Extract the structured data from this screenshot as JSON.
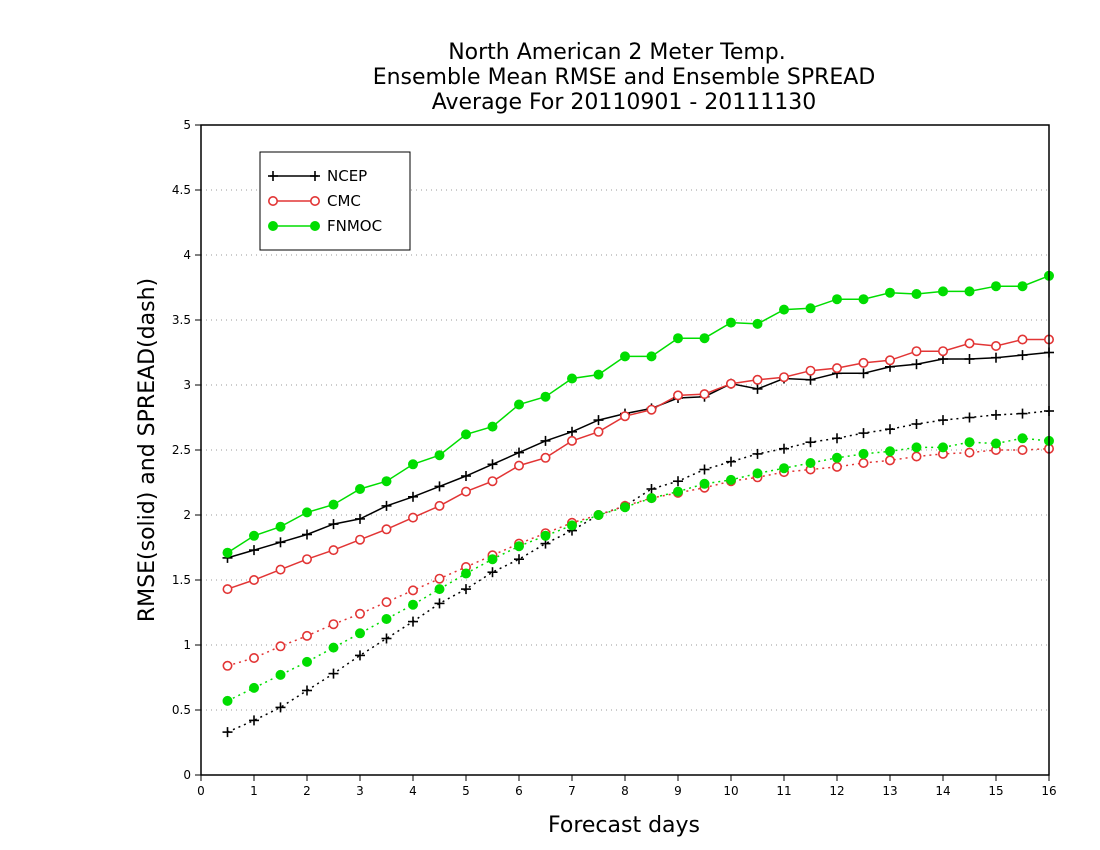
{
  "chart_data": {
    "type": "line",
    "title": [
      "North American 2 Meter Temp.",
      "Ensemble Mean RMSE and Ensemble SPREAD",
      "Average For 20110901 - 20111130"
    ],
    "xlabel": "Forecast days",
    "ylabel": "RMSE(solid) and SPREAD(dash)",
    "xlim": [
      0,
      16
    ],
    "ylim": [
      0,
      5
    ],
    "x_ticks": [
      "0",
      "1",
      "2",
      "3",
      "4",
      "5",
      "6",
      "7",
      "8",
      "9",
      "10",
      "11",
      "12",
      "13",
      "14",
      "15",
      "16"
    ],
    "y_ticks": [
      "0",
      "0.5",
      "1",
      "1.5",
      "2",
      "2.5",
      "3",
      "3.5",
      "4",
      "4.5",
      "5"
    ],
    "grid": "horizontal dotted",
    "legend_position": "top-left",
    "x": [
      0.5,
      1,
      1.5,
      2,
      2.5,
      3,
      3.5,
      4,
      4.5,
      5,
      5.5,
      6,
      6.5,
      7,
      7.5,
      8,
      8.5,
      9,
      9.5,
      10,
      10.5,
      11,
      11.5,
      12,
      12.5,
      13,
      13.5,
      14,
      14.5,
      15,
      15.5,
      16
    ],
    "series": [
      {
        "name": "NCEP",
        "color": "#000000",
        "marker": "plus",
        "rmse": [
          1.67,
          1.73,
          1.79,
          1.85,
          1.93,
          1.97,
          2.07,
          2.14,
          2.22,
          2.3,
          2.39,
          2.48,
          2.57,
          2.64,
          2.73,
          2.78,
          2.82,
          2.9,
          2.91,
          3.01,
          2.97,
          3.05,
          3.04,
          3.09,
          3.09,
          3.14,
          3.16,
          3.2,
          3.2,
          3.21,
          3.23,
          3.25
        ],
        "spread": [
          0.33,
          0.42,
          0.52,
          0.65,
          0.78,
          0.92,
          1.05,
          1.18,
          1.32,
          1.43,
          1.56,
          1.66,
          1.78,
          1.88,
          2.0,
          2.07,
          2.2,
          2.26,
          2.35,
          2.41,
          2.47,
          2.51,
          2.56,
          2.59,
          2.63,
          2.66,
          2.7,
          2.73,
          2.75,
          2.77,
          2.78,
          2.8
        ]
      },
      {
        "name": "CMC",
        "color": "#e23535",
        "marker": "open-circle",
        "rmse": [
          1.43,
          1.5,
          1.58,
          1.66,
          1.73,
          1.81,
          1.89,
          1.98,
          2.07,
          2.18,
          2.26,
          2.38,
          2.44,
          2.57,
          2.64,
          2.76,
          2.81,
          2.92,
          2.93,
          3.01,
          3.04,
          3.06,
          3.11,
          3.13,
          3.17,
          3.19,
          3.26,
          3.26,
          3.32,
          3.3,
          3.35,
          3.35
        ],
        "spread": [
          0.84,
          0.9,
          0.99,
          1.07,
          1.16,
          1.24,
          1.33,
          1.42,
          1.51,
          1.6,
          1.69,
          1.78,
          1.86,
          1.94,
          2.0,
          2.07,
          2.13,
          2.17,
          2.21,
          2.26,
          2.29,
          2.33,
          2.35,
          2.37,
          2.4,
          2.42,
          2.45,
          2.47,
          2.48,
          2.5,
          2.5,
          2.51
        ]
      },
      {
        "name": "FNMOC",
        "color": "#00dd00",
        "marker": "filled-circle",
        "rmse": [
          1.71,
          1.84,
          1.91,
          2.02,
          2.08,
          2.2,
          2.26,
          2.39,
          2.46,
          2.62,
          2.68,
          2.85,
          2.91,
          3.05,
          3.08,
          3.22,
          3.22,
          3.36,
          3.36,
          3.48,
          3.47,
          3.58,
          3.59,
          3.66,
          3.66,
          3.71,
          3.7,
          3.72,
          3.72,
          3.76,
          3.76,
          3.84
        ],
        "spread": [
          0.57,
          0.67,
          0.77,
          0.87,
          0.98,
          1.09,
          1.2,
          1.31,
          1.43,
          1.55,
          1.66,
          1.76,
          1.84,
          1.92,
          2.0,
          2.06,
          2.13,
          2.18,
          2.24,
          2.27,
          2.32,
          2.36,
          2.4,
          2.44,
          2.47,
          2.49,
          2.52,
          2.52,
          2.56,
          2.55,
          2.59,
          2.57
        ]
      }
    ]
  }
}
